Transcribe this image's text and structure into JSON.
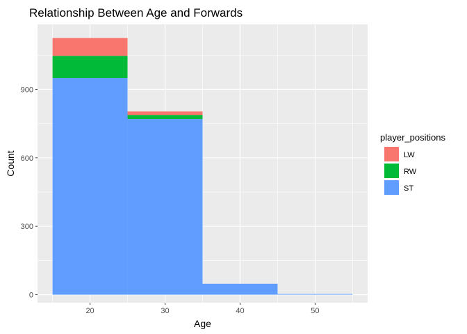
{
  "chart_data": {
    "type": "bar",
    "stacked": true,
    "title": "Relationship Between Age and Forwards",
    "xlabel": "Age",
    "ylabel": "Count",
    "bins": [
      [
        15,
        25
      ],
      [
        25,
        35
      ],
      [
        35,
        45
      ],
      [
        45,
        55
      ]
    ],
    "xlim": [
      13,
      57
    ],
    "ylim": [
      -35,
      1185
    ],
    "x_ticks": [
      20,
      30,
      40,
      50
    ],
    "y_ticks": [
      0,
      300,
      600,
      900
    ],
    "grid": true,
    "legend": {
      "title": "player_positions",
      "position": "right"
    },
    "series": [
      {
        "name": "ST",
        "color": "#619CFF",
        "values": [
          950,
          770,
          48,
          3
        ]
      },
      {
        "name": "RW",
        "color": "#00BA38",
        "values": [
          97,
          18,
          0,
          0
        ]
      },
      {
        "name": "LW",
        "color": "#F8766D",
        "values": [
          78,
          15,
          0,
          0
        ]
      }
    ],
    "legend_order": [
      "LW",
      "RW",
      "ST"
    ]
  }
}
